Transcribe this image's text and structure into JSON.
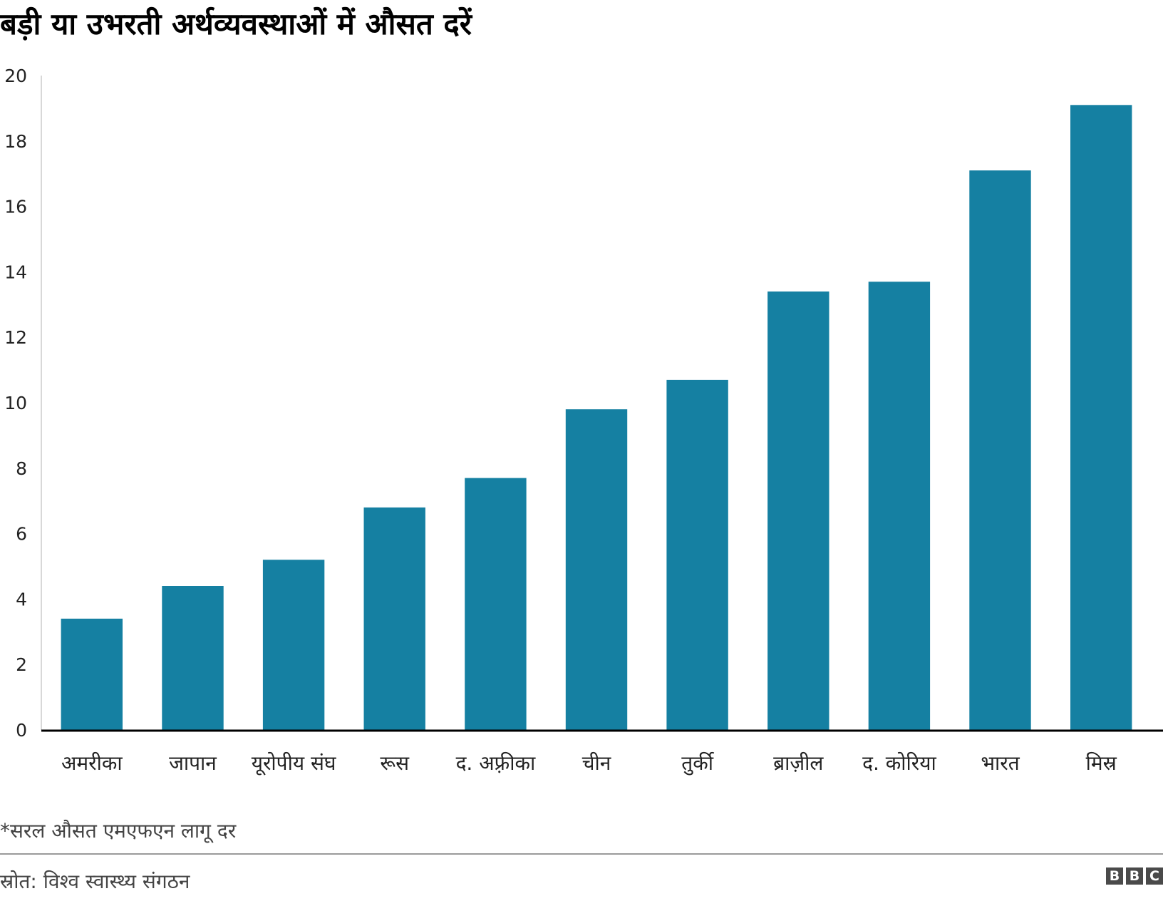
{
  "chart_data": {
    "type": "bar",
    "title": "बड़ी या उभरती अर्थव्यवस्थाओं में औसत दरें",
    "categories": [
      "अमरीका",
      "जापान",
      "यूरोपीय संघ",
      "रूस",
      "द. अफ़्रीका",
      "चीन",
      "तुर्की",
      "ब्राज़ील",
      "द. कोरिया",
      "भारत",
      "मिस्र"
    ],
    "values": [
      3.4,
      4.4,
      5.2,
      6.8,
      7.7,
      9.8,
      10.7,
      13.4,
      13.7,
      17.1,
      19.1
    ],
    "ylim": [
      0,
      20
    ],
    "yticks": [
      0,
      2,
      4,
      6,
      8,
      10,
      12,
      14,
      16,
      18,
      20
    ],
    "bar_color": "#1580a2",
    "grid": false,
    "legend": "none"
  },
  "footnote": "*सरल औसत एमएफएन लागू दर",
  "source": "स्रोत: विश्व स्वास्थ्य संगठन",
  "logo": [
    "B",
    "B",
    "C"
  ]
}
